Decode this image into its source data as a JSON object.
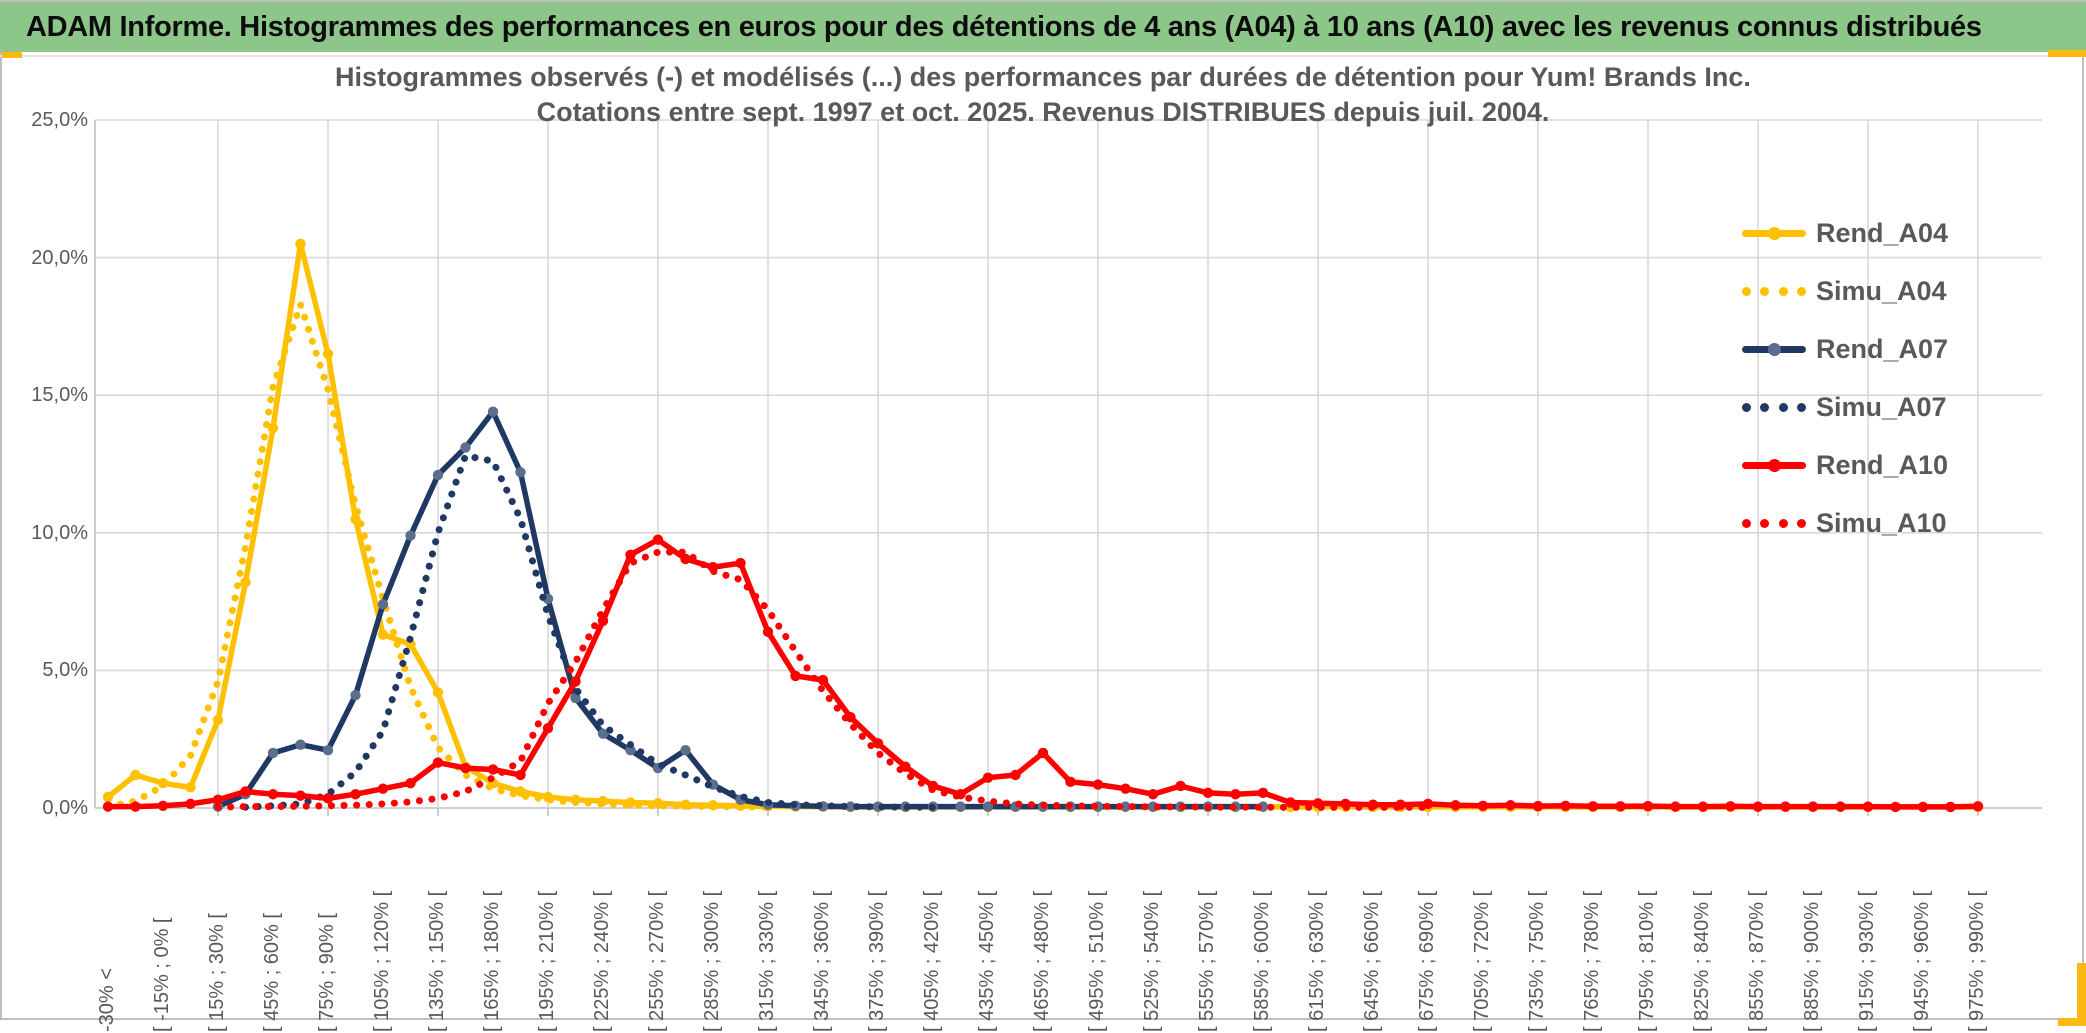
{
  "banner": {
    "title": "ADAM Informe. Histogrammes des performances en euros pour des détentions de 4 ans (A04) à 10 ans (A10) avec les revenus connus distribués"
  },
  "colors": {
    "banner_green": "#8cc789",
    "accent_orange": "#fdb913",
    "gold": "#FFC000",
    "navy": "#1F3864",
    "navy_marker": "#5B6E8E",
    "red": "#FE0000",
    "grid": "#D9D9D9",
    "axis": "#C0C0C0",
    "text_gray": "#595959"
  },
  "chart_data": {
    "type": "line",
    "title_line1": "Histogrammes observés (-) et modélisés (...) des performances par durées de détention pour Yum! Brands Inc.",
    "title_line2": "Cotations entre sept. 1997 et oct. 2025. Revenus DISTRIBUES depuis juil. 2004.",
    "ylabel": "",
    "xlabel": "",
    "ylim": [
      0,
      25
    ],
    "grid": true,
    "legend_position": "right",
    "y_ticks": [
      "0,0%",
      "5,0%",
      "10,0%",
      "15,0%",
      "20,0%",
      "25,0%"
    ],
    "x_tick_labels": [
      "-30% <",
      "[ -15% ; 0% [",
      "[ 15% ; 30% [",
      "[ 45% ; 60% [",
      "[ 75% ; 90% [",
      "[ 105% ; 120% [",
      "[ 135% ; 150% [",
      "[ 165% ; 180% [",
      "[ 195% ; 210% [",
      "[ 225% ; 240% [",
      "[ 255% ; 270% [",
      "[ 285% ; 300% [",
      "[ 315% ; 330% [",
      "[ 345% ; 360% [",
      "[ 375% ; 390% [",
      "[ 405% ; 420% [",
      "[ 435% ; 450% [",
      "[ 465% ; 480% [",
      "[ 495% ; 510% [",
      "[ 525% ; 540% [",
      "[ 555% ; 570% [",
      "[ 585% ; 600% [",
      "[ 615% ; 630% [",
      "[ 645% ; 660% [",
      "[ 675% ; 690% [",
      "[ 705% ; 720% [",
      "[ 735% ; 750% [",
      "[ 765% ; 780% [",
      "[ 795% ; 810% [",
      "[ 825% ; 840% [",
      "[ 855% ; 870% [",
      "[ 885% ; 900% [",
      "[ 915% ; 930% [",
      "[ 945% ; 960% [",
      "[ 975% ; 990% ["
    ],
    "bins_per_labeled_tick": 2,
    "bin_width_percent": 15,
    "series": [
      {
        "name": "Rend_A04",
        "style": "solid",
        "color": "#FFC000",
        "marker_color": "#FFC000",
        "values": [
          0.4,
          1.2,
          0.9,
          0.75,
          3.2,
          8.2,
          13.8,
          20.5,
          16.5,
          10.5,
          6.3,
          5.95,
          4.2,
          1.5,
          0.9,
          0.6,
          0.4,
          0.3,
          0.25,
          0.2,
          0.17,
          0.12,
          0.1,
          0.08,
          0.06,
          0.05,
          0.05,
          0.04,
          0.04,
          0.04,
          0.04,
          0.04,
          0.04,
          0.04,
          0.04,
          0.04,
          0.04,
          0.04,
          0.04,
          0.04,
          0.04,
          0.04,
          0.04,
          0.04,
          0.04,
          0.04,
          0.04,
          0.04,
          0.04,
          0.04,
          0.04,
          0.04,
          0.04,
          0.04,
          0.04,
          0.04,
          0.04,
          0.04,
          0.04,
          0.04,
          0.04,
          0.04,
          0.04,
          0.04,
          0.04,
          0.04,
          0.04,
          0.04,
          0.04
        ]
      },
      {
        "name": "Simu_A04",
        "style": "dotted",
        "color": "#FFC000",
        "values": [
          0.05,
          0.25,
          0.8,
          1.9,
          4.6,
          9.5,
          15.3,
          18.3,
          15.2,
          11.0,
          7.6,
          4.4,
          2.2,
          1.2,
          0.7,
          0.45,
          0.3,
          0.2,
          0.15,
          0.1,
          0.08,
          0.06,
          0.05,
          0.04,
          0.03,
          null,
          null,
          null,
          null,
          null,
          null,
          null,
          null,
          null,
          null,
          null,
          null,
          null,
          null,
          null,
          null,
          null,
          null,
          null,
          null,
          null,
          null,
          null,
          null,
          null,
          null,
          null,
          null,
          null,
          null,
          null,
          null,
          null,
          null,
          null,
          null,
          null,
          null,
          null,
          null,
          null,
          null,
          null,
          null
        ]
      },
      {
        "name": "Rend_A07",
        "style": "solid",
        "color": "#1F3864",
        "marker_color": "#5B6E8E",
        "values": [
          null,
          null,
          null,
          null,
          0.05,
          0.5,
          2.0,
          2.3,
          2.1,
          4.1,
          7.4,
          9.9,
          12.1,
          13.1,
          14.4,
          12.2,
          7.6,
          4.0,
          2.7,
          2.1,
          1.45,
          2.1,
          0.85,
          0.3,
          0.12,
          0.08,
          0.06,
          0.05,
          0.05,
          0.05,
          0.05,
          0.05,
          0.05,
          0.05,
          0.05,
          0.05,
          0.05,
          0.05,
          0.05,
          0.05,
          0.05,
          0.05,
          0.05,
          null,
          null,
          null,
          null,
          null,
          null,
          null,
          null,
          null,
          null,
          null,
          null,
          null,
          null,
          null,
          null,
          null,
          null,
          null,
          null,
          null,
          null,
          null,
          null,
          null,
          null
        ]
      },
      {
        "name": "Simu_A07",
        "style": "dotted",
        "color": "#1F3864",
        "values": [
          null,
          null,
          null,
          null,
          null,
          0.03,
          0.08,
          0.15,
          0.5,
          1.3,
          2.8,
          6.2,
          10.0,
          12.8,
          12.6,
          10.5,
          7.0,
          4.35,
          3.0,
          2.3,
          1.6,
          1.2,
          0.77,
          0.42,
          0.2,
          0.12,
          0.08,
          0.05,
          0.04,
          0.03,
          0.03,
          null,
          null,
          null,
          null,
          null,
          null,
          null,
          null,
          null,
          null,
          null,
          null,
          null,
          null,
          null,
          null,
          null,
          null,
          null,
          null,
          null,
          null,
          null,
          null,
          null,
          null,
          null,
          null,
          null,
          null,
          null,
          null,
          null,
          null,
          null,
          null,
          null,
          null
        ]
      },
      {
        "name": "Rend_A10",
        "style": "solid",
        "color": "#FE0000",
        "marker_color": "#FE0000",
        "values": [
          0.05,
          0.05,
          0.08,
          0.15,
          0.3,
          0.6,
          0.5,
          0.45,
          0.35,
          0.5,
          0.7,
          0.9,
          1.65,
          1.45,
          1.4,
          1.2,
          2.9,
          4.6,
          6.8,
          9.2,
          9.75,
          9.05,
          8.75,
          8.9,
          6.4,
          4.8,
          4.65,
          3.3,
          2.35,
          1.5,
          0.8,
          0.5,
          1.1,
          1.2,
          2.0,
          0.95,
          0.85,
          0.7,
          0.5,
          0.8,
          0.55,
          0.5,
          0.55,
          0.2,
          0.17,
          0.15,
          0.12,
          0.12,
          0.15,
          0.1,
          0.08,
          0.1,
          0.07,
          0.08,
          0.06,
          0.06,
          0.07,
          0.05,
          0.05,
          0.06,
          0.05,
          0.05,
          0.05,
          0.05,
          0.05,
          0.04,
          0.04,
          0.04,
          0.06
        ]
      },
      {
        "name": "Simu_A10",
        "style": "dotted",
        "color": "#FE0000",
        "values": [
          null,
          null,
          null,
          null,
          0.03,
          0.05,
          0.05,
          0.06,
          0.08,
          0.1,
          0.15,
          0.22,
          0.35,
          0.6,
          1.1,
          1.7,
          3.8,
          5.3,
          7.2,
          8.9,
          9.3,
          9.3,
          8.6,
          8.3,
          7.2,
          5.7,
          4.25,
          3.05,
          2.0,
          1.25,
          0.65,
          0.4,
          0.25,
          0.15,
          0.1,
          0.08,
          0.06,
          0.05,
          0.04,
          0.04,
          0.03,
          0.03,
          0.03,
          0.02,
          0.02,
          0.02,
          0.02,
          0.02,
          0.02,
          null,
          null,
          null,
          null,
          null,
          null,
          null,
          null,
          null,
          null,
          null,
          null,
          null,
          null,
          null,
          null,
          null,
          null,
          null,
          null
        ]
      }
    ],
    "legend_entries": [
      "Rend_A04",
      "Simu_A04",
      "Rend_A07",
      "Simu_A07",
      "Rend_A10",
      "Simu_A10"
    ]
  }
}
